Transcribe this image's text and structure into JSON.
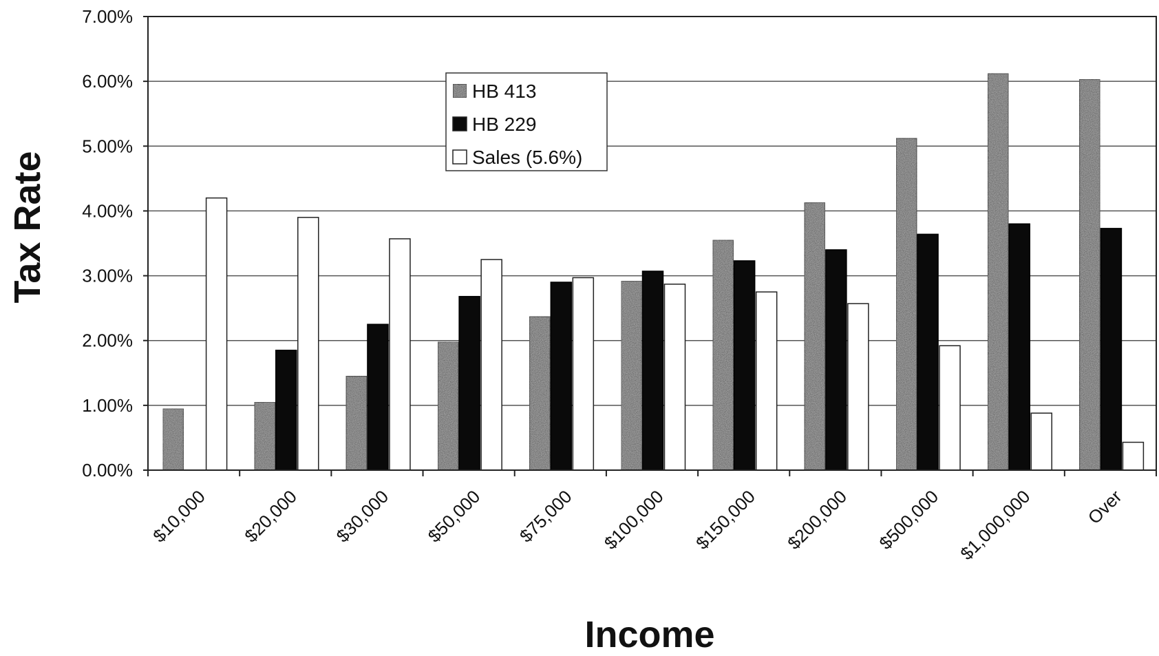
{
  "chart_data": {
    "type": "bar",
    "title": "",
    "xlabel": "Income",
    "ylabel": "Tax Rate",
    "ylim": [
      0,
      7
    ],
    "y_unit": "percent",
    "yticks": [
      "0.00%",
      "1.00%",
      "2.00%",
      "3.00%",
      "4.00%",
      "5.00%",
      "6.00%",
      "7.00%"
    ],
    "grid": "horizontal",
    "legend_position": "upper-center",
    "categories": [
      "$10,000",
      "$20,000",
      "$30,000",
      "$50,000",
      "$75,000",
      "$100,000",
      "$150,000",
      "$200,000",
      "$500,000",
      "$1,000,000",
      "Over"
    ],
    "series": [
      {
        "name": "HB 413",
        "values": [
          0.95,
          1.05,
          1.45,
          1.98,
          2.37,
          2.92,
          3.55,
          4.13,
          5.12,
          6.12,
          6.03
        ],
        "color": "#9a9a9a",
        "pattern": "speckled-gray"
      },
      {
        "name": "HB 229",
        "values": [
          0.0,
          1.85,
          2.25,
          2.68,
          2.9,
          3.07,
          3.23,
          3.4,
          3.64,
          3.8,
          3.73
        ],
        "color": "#000000",
        "pattern": "solid-black"
      },
      {
        "name": "Sales (5.6%)",
        "values": [
          4.2,
          3.9,
          3.57,
          3.25,
          2.97,
          2.87,
          2.75,
          2.57,
          1.92,
          0.88,
          0.43
        ],
        "color": "#ffffff",
        "pattern": "white-outline"
      }
    ]
  }
}
